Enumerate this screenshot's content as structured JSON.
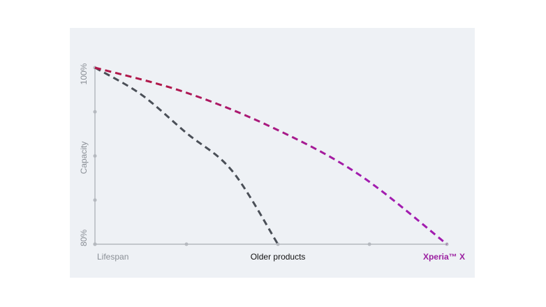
{
  "chart_data": {
    "type": "line",
    "y_label": "Capacity",
    "xlim": [
      0,
      100
    ],
    "ylim": [
      80,
      100
    ],
    "xticks": [
      {
        "value": 0,
        "label": "Lifespan"
      },
      {
        "value": 26,
        "label": null
      },
      {
        "value": 52,
        "label": "Older products"
      },
      {
        "value": 78,
        "label": null
      },
      {
        "value": 100,
        "label": "Xperia™ X"
      }
    ],
    "yticks": [
      {
        "value": 80,
        "label": "80%"
      },
      {
        "value": 85,
        "label": null
      },
      {
        "value": 90,
        "label": null
      },
      {
        "value": 95,
        "label": null
      },
      {
        "value": 100,
        "label": "100%"
      }
    ],
    "series": [
      {
        "color": "#4a4f57",
        "x": [
          0,
          13,
          26,
          39,
          52
        ],
        "values": [
          100,
          97.0,
          92.6,
          88.3,
          80
        ]
      },
      {
        "color": "#b0174a",
        "color_end": "#a21caf",
        "x": [
          0,
          25,
          50,
          75,
          100
        ],
        "values": [
          100,
          97.3,
          93.3,
          87.9,
          80
        ]
      }
    ]
  }
}
